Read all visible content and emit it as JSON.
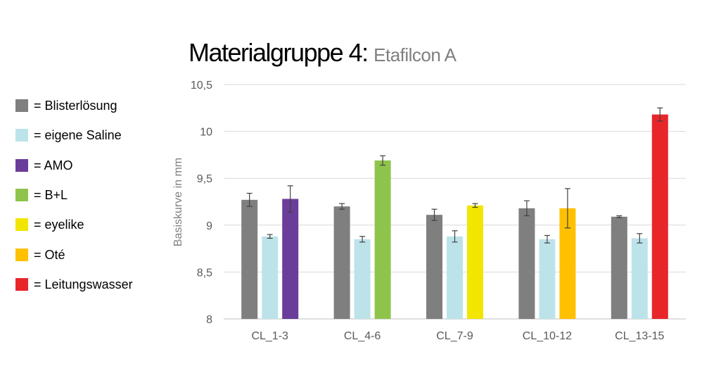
{
  "title": {
    "main": "Materialgruppe 4:",
    "sub": "Etafilcon A"
  },
  "legend": [
    {
      "label": "= Blisterlösung",
      "color": "#7f7f7f"
    },
    {
      "label": "= eigene Saline",
      "color": "#bde3ea"
    },
    {
      "label": "= AMO",
      "color": "#6a3d9a"
    },
    {
      "label": "= B+L",
      "color": "#8fc44c"
    },
    {
      "label": "= eyelike",
      "color": "#f2e600"
    },
    {
      "label": "= Oté",
      "color": "#ffc000"
    },
    {
      "label": "= Leitungswasser",
      "color": "#e8262a"
    }
  ],
  "chart_data": {
    "type": "bar",
    "ylabel": "Basiskurve in mm",
    "ylim": [
      8,
      10.5
    ],
    "yticks": [
      "8",
      "8,5",
      "9",
      "9,5",
      "10",
      "10,5"
    ],
    "grid": true,
    "categories": [
      {
        "label": "CL_1-3",
        "bars": [
          {
            "value": 9.27,
            "error": 0.07,
            "color": "#7f7f7f"
          },
          {
            "value": 8.88,
            "error": 0.02,
            "color": "#bde3ea"
          },
          {
            "value": 9.28,
            "error": 0.14,
            "color": "#6a3d9a"
          }
        ]
      },
      {
        "label": "CL_4-6",
        "bars": [
          {
            "value": 9.2,
            "error": 0.03,
            "color": "#7f7f7f"
          },
          {
            "value": 8.85,
            "error": 0.03,
            "color": "#bde3ea"
          },
          {
            "value": 9.69,
            "error": 0.05,
            "color": "#8fc44c"
          }
        ]
      },
      {
        "label": "CL_7-9",
        "bars": [
          {
            "value": 9.11,
            "error": 0.06,
            "color": "#7f7f7f"
          },
          {
            "value": 8.88,
            "error": 0.06,
            "color": "#bde3ea"
          },
          {
            "value": 9.21,
            "error": 0.02,
            "color": "#f2e600"
          }
        ]
      },
      {
        "label": "CL_10-12",
        "bars": [
          {
            "value": 9.18,
            "error": 0.08,
            "color": "#7f7f7f"
          },
          {
            "value": 8.85,
            "error": 0.04,
            "color": "#bde3ea"
          },
          {
            "value": 9.18,
            "error": 0.21,
            "color": "#ffc000"
          }
        ]
      },
      {
        "label": "CL_13-15",
        "bars": [
          {
            "value": 9.09,
            "error": 0.01,
            "color": "#7f7f7f"
          },
          {
            "value": 8.86,
            "error": 0.05,
            "color": "#bde3ea"
          },
          {
            "value": 10.18,
            "error": 0.07,
            "color": "#e8262a"
          }
        ]
      }
    ]
  }
}
